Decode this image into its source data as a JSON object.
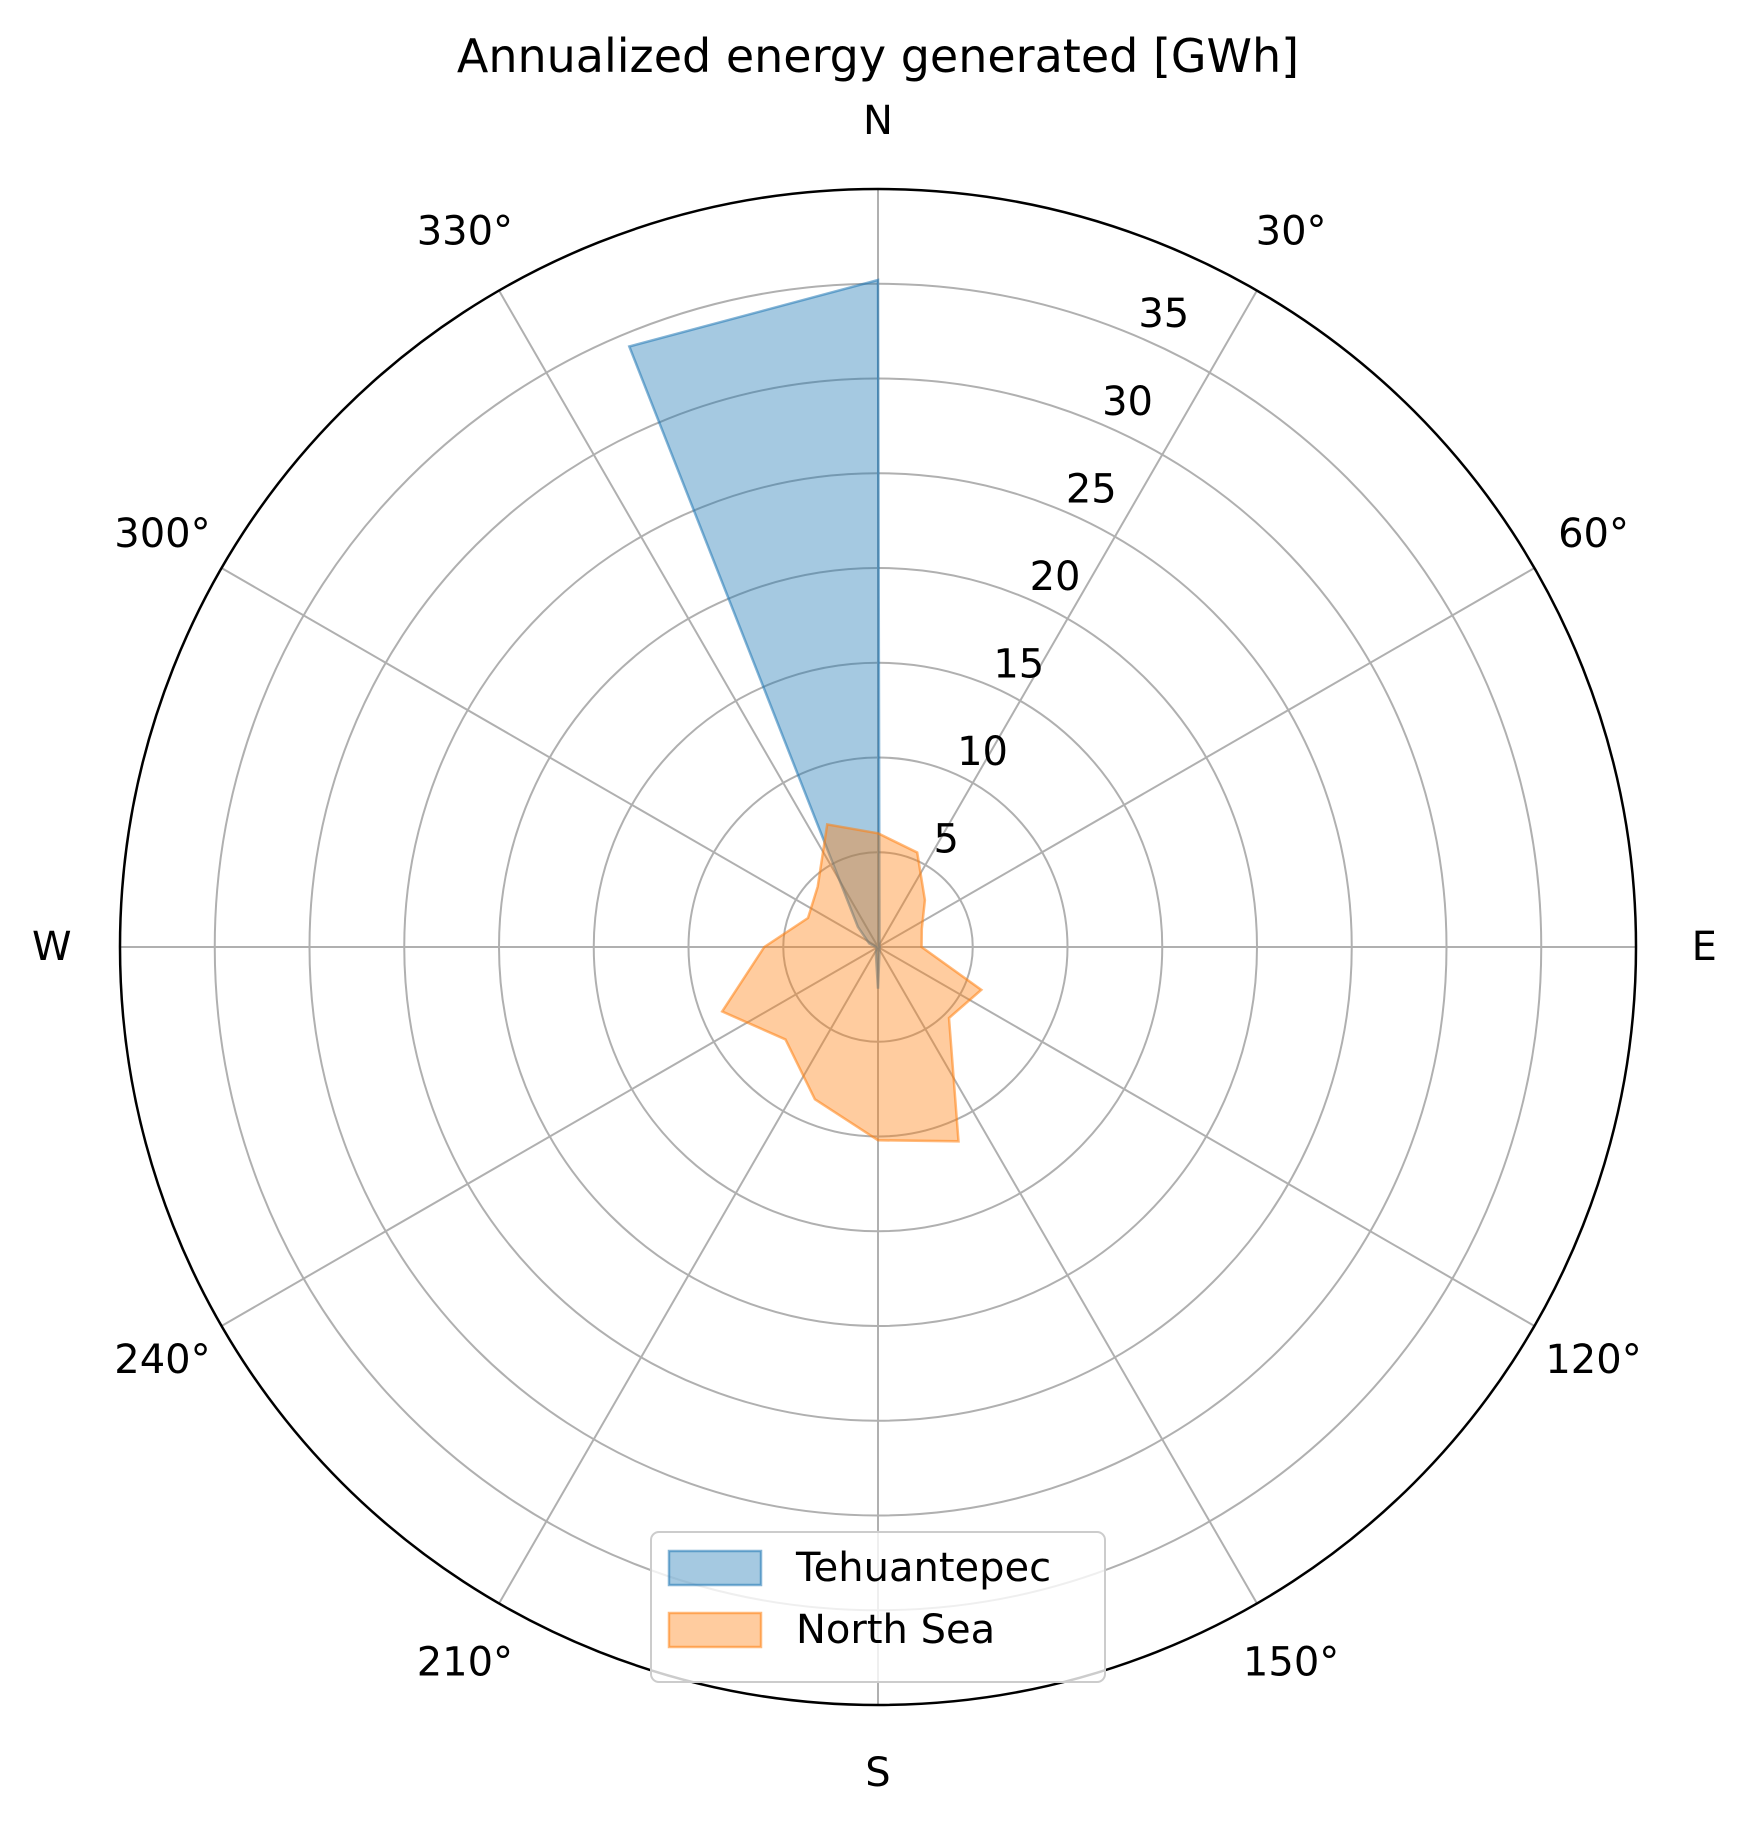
{
  "chart_data": {
    "type": "area",
    "subtype": "polar",
    "title": "Annualized energy generated [GWh]",
    "theta_direction": "clockwise",
    "theta_zero": "N",
    "theta_tick_labels": [
      "N",
      "30°",
      "60°",
      "E",
      "120°",
      "150°",
      "S",
      "210°",
      "240°",
      "W",
      "300°",
      "330°"
    ],
    "r_tick_labels": [
      "5",
      "10",
      "15",
      "20",
      "25",
      "30",
      "35"
    ],
    "r_ticks": [
      5,
      10,
      15,
      20,
      25,
      30,
      35
    ],
    "rlim": [
      0,
      40
    ],
    "grid": true,
    "legend_position": "lower center",
    "series": [
      {
        "name": "Tehuantepec",
        "color": "#1f77b4",
        "fill_opacity": 0.4,
        "theta_deg": [
          0,
          22.5,
          45,
          67.5,
          90,
          112.5,
          135,
          157.5,
          180,
          202.5,
          225,
          247.5,
          270,
          292.5,
          315,
          337.5
        ],
        "values": [
          35.2,
          0.2,
          0.1,
          0.1,
          0.1,
          0.1,
          0.1,
          0.2,
          2.2,
          0.3,
          0.1,
          0.1,
          0.1,
          0.5,
          1.5,
          34.3
        ]
      },
      {
        "name": "North Sea",
        "color": "#ff7f0e",
        "fill_opacity": 0.4,
        "theta_deg": [
          0,
          22.5,
          45,
          67.5,
          90,
          112.5,
          135,
          157.5,
          180,
          202.5,
          225,
          247.5,
          270,
          292.5,
          315,
          337.5
        ],
        "values": [
          6.0,
          5.4,
          3.5,
          2.5,
          2.3,
          5.9,
          5.3,
          11.1,
          10.2,
          8.7,
          6.9,
          8.9,
          6.0,
          4.0,
          4.5,
          7.0
        ]
      }
    ]
  }
}
